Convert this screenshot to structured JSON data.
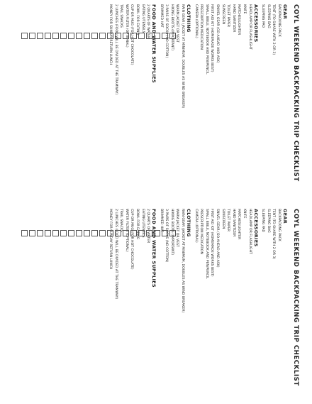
{
  "checklist": {
    "title": "COYL WEEKEND BACKPACKING TRIP CHECKLIST",
    "sections": [
      {
        "heading": "GEAR",
        "items": [
          "BACKPACKING PACK",
          "TENT (TO SHARE WITH 2 OR 3)",
          "SLEEPING BAG",
          "SLEEPING PAD"
        ]
      },
      {
        "heading": "ACCESSORIES",
        "items": [
          "HEADLAMP OR FLASHLIGHT",
          "KNIFE",
          "MATCHES/LIGHTER",
          "HAND SANITIZER",
          "TOILET PAPER",
          "SUNSCREEN",
          "SNIVEL GEAR (GO AHEAD AND ASK)",
          "FIRST AID KIT (HOMEMADE WORKS BEST)",
          "SMALL BIBLE, NOTEBOOK AND PEN/PENCIL",
          "PRESCRIPTION MEDICATION",
          "CAMERA (OPTIONAL)"
        ]
      },
      {
        "heading": "CLOTHING",
        "items": [
          "RAIN GEAR (JACKET AT MINIMUM, DOUBLES AS WIND BREAKER)",
          "WARM JACKET OR VEST",
          "HIKING BOOTS (IMPORTANT)",
          "3 PAIRS OF SOCKS (NO COTTON)",
          "BRIMMED HAT"
        ]
      },
      {
        "heading": "FOOD AND WATER SUPPLIES",
        "items": [
          "2 QUARTS OF WATER",
          "EATING UTENSILS",
          "BOWL FOR EATING",
          "CUP OR MUG (FOR HOT CHOCOLATE)",
          "WATER FILTER (OPTIONAL)",
          "TRAIL SNACKS",
          "2 LUNCHES (FOOD WILL BE DIVIDED AT THE TRAMWAY)",
          "MONEY FOR SUNDAY RETURN LUNCH"
        ]
      }
    ]
  }
}
